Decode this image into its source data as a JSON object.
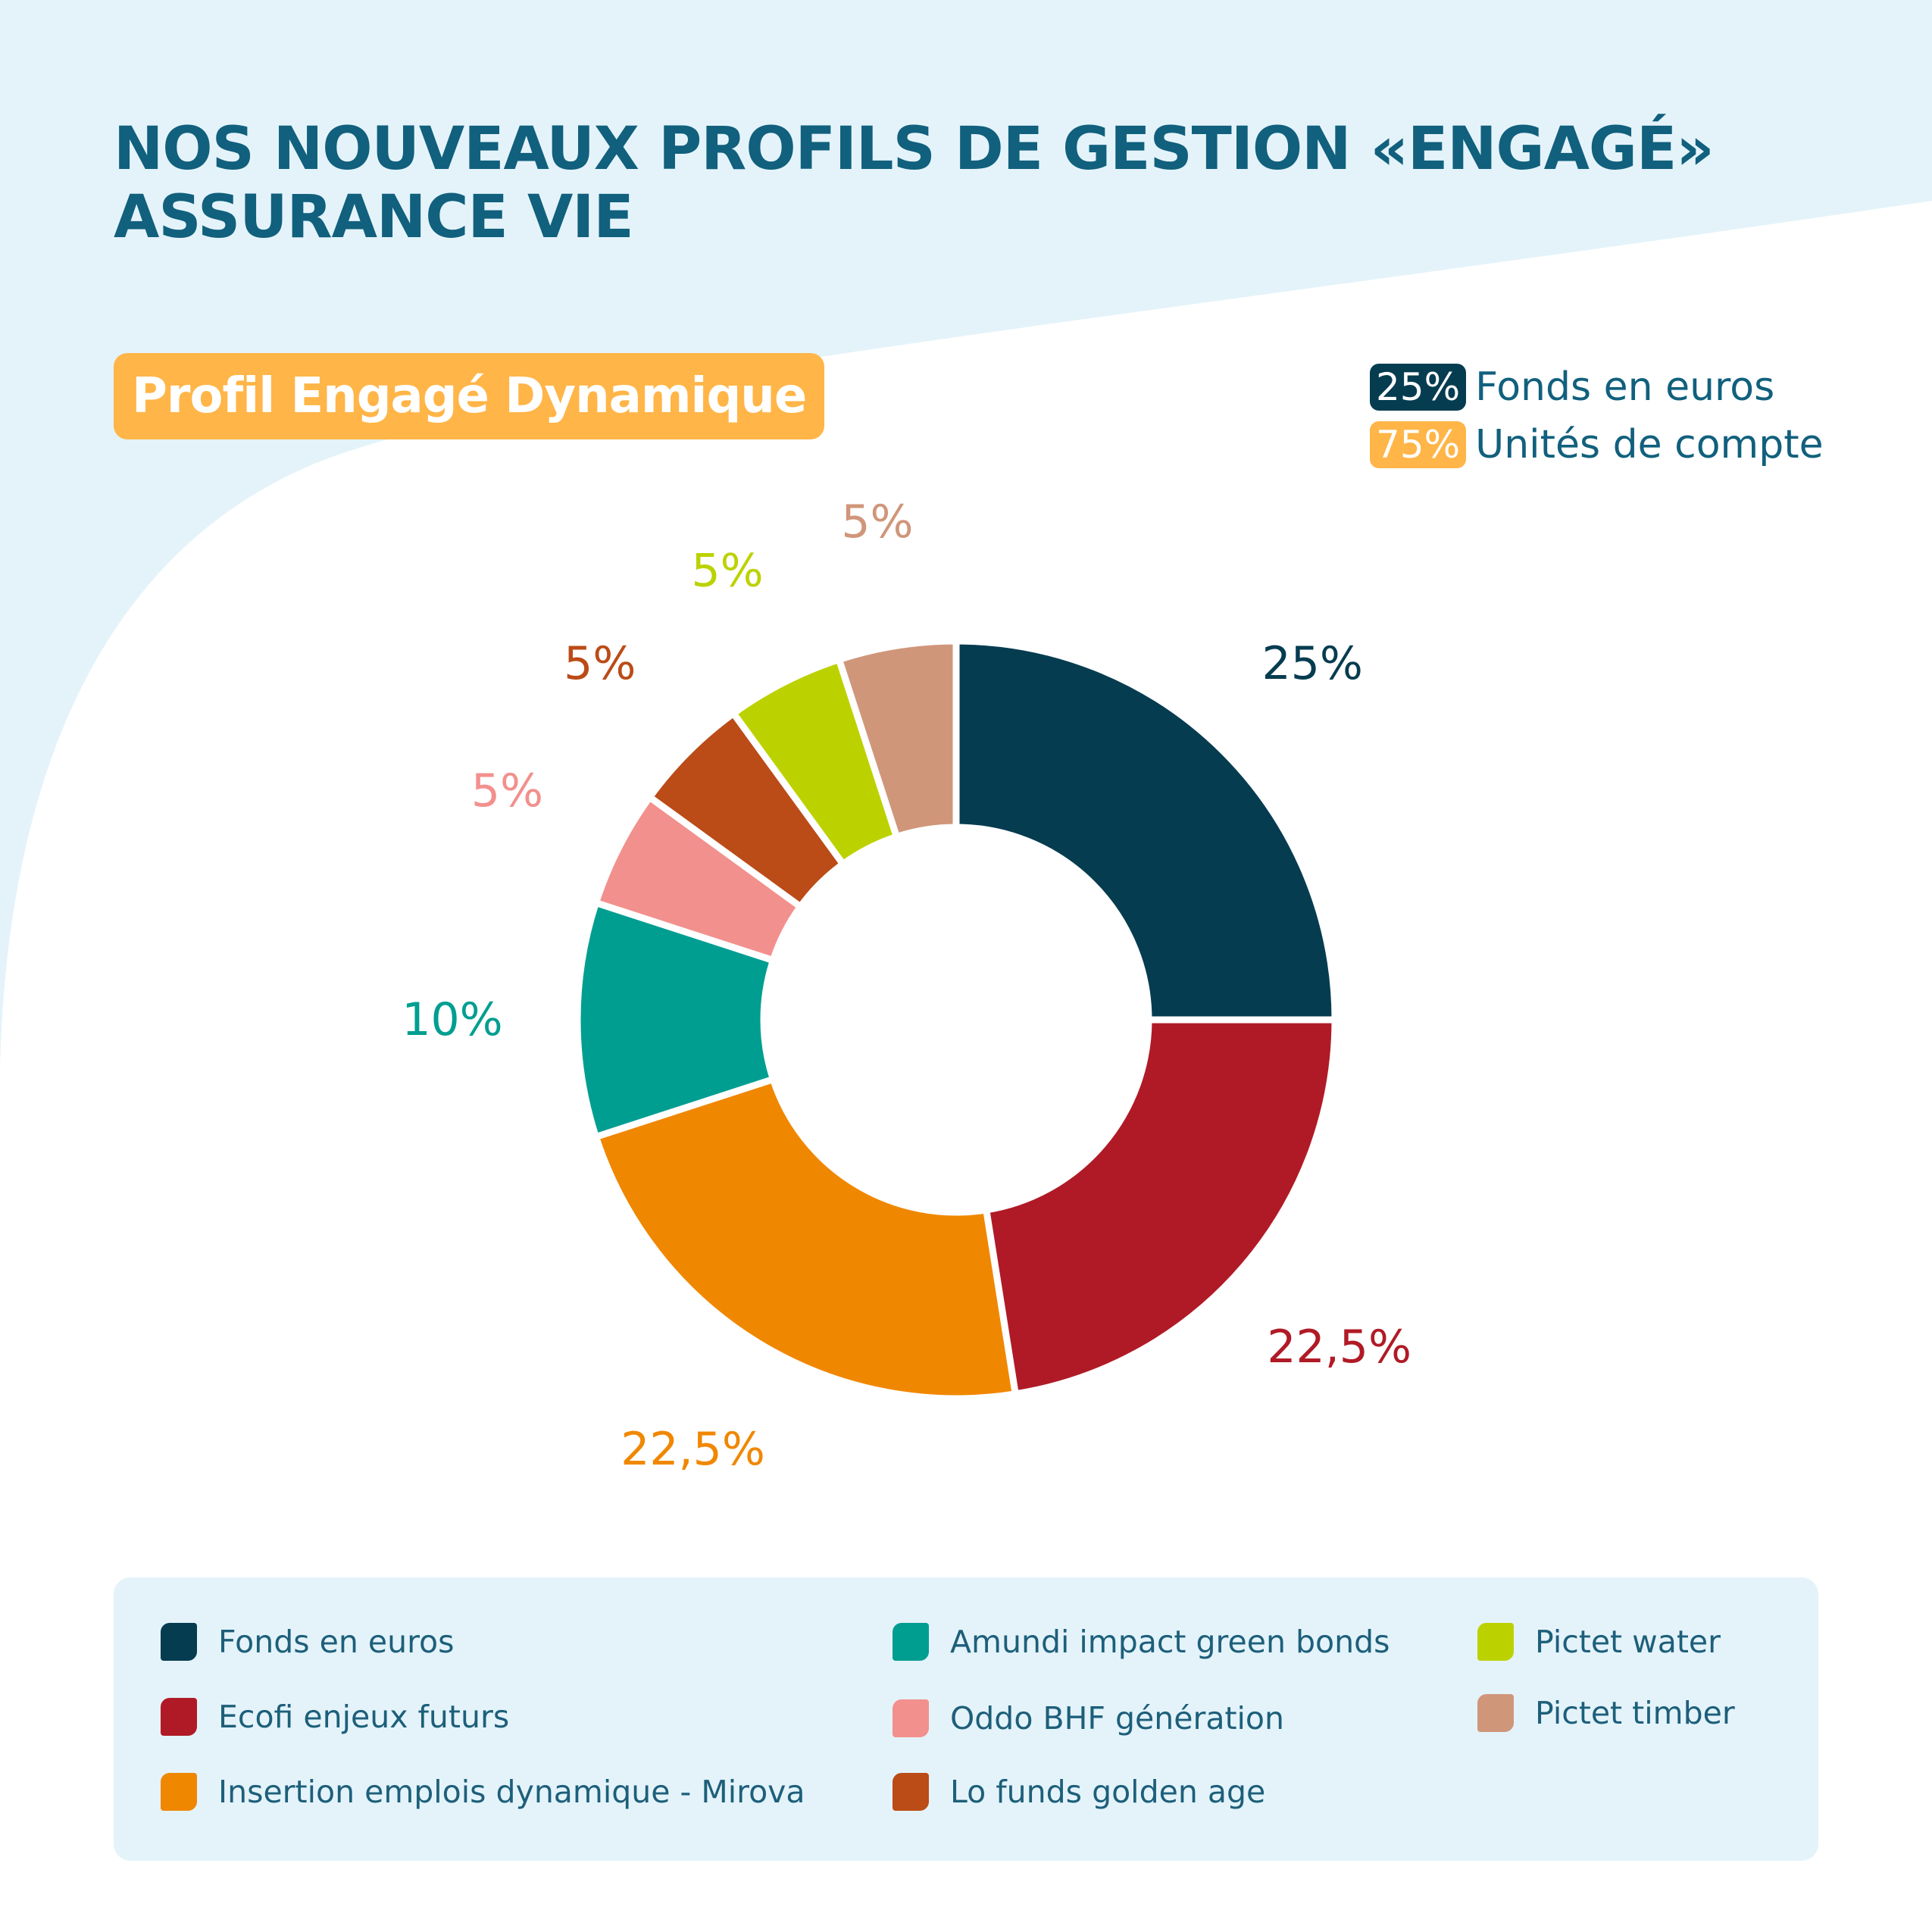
{
  "header": {
    "title_line1": "NOS NOUVEAUX PROFILS DE GESTION «ENGAGÉ»",
    "title_line2": "ASSURANCE VIE"
  },
  "profile": {
    "label": "Profil Engagé Dynamique",
    "color": "#ffb547"
  },
  "allocation": [
    {
      "pct": "25%",
      "label": "Fonds en euros",
      "color": "#063c50"
    },
    {
      "pct": "75%",
      "label": "Unités de compte",
      "color": "#ffb547"
    }
  ],
  "chart_data": {
    "type": "pie",
    "title": "",
    "categories": [
      "Fonds en euros",
      "Ecofi enjeux futurs",
      "Insertion emplois dynamique - Mirova",
      "Amundi impact green bonds",
      "Oddo BHF génération",
      "Lo funds golden age",
      "Pictet water",
      "Pictet timber"
    ],
    "values": [
      25,
      22.5,
      22.5,
      10,
      5,
      5,
      5,
      5
    ],
    "data_labels": [
      "25%",
      "22,5%",
      "22,5%",
      "10%",
      "5%",
      "5%",
      "5%",
      "5%"
    ],
    "colors": [
      "#063c50",
      "#b01a26",
      "#f08700",
      "#009e91",
      "#f2908d",
      "#bb4b17",
      "#bcd200",
      "#d0967a"
    ],
    "donut": true,
    "legend_position": "bottom"
  },
  "legend": {
    "items": [
      {
        "label": "Fonds en euros",
        "color": "#063c50"
      },
      {
        "label": "Ecofi enjeux futurs",
        "color": "#b01a26"
      },
      {
        "label": "Insertion emplois dynamique - Mirova",
        "color": "#f08700"
      },
      {
        "label": "Amundi impact green bonds",
        "color": "#009e91"
      },
      {
        "label": "Oddo BHF génération",
        "color": "#f2908d"
      },
      {
        "label": "Lo funds golden age",
        "color": "#bb4b17"
      },
      {
        "label": "Pictet water",
        "color": "#bcd200"
      },
      {
        "label": "Pictet timber",
        "color": "#d0967a"
      }
    ]
  }
}
